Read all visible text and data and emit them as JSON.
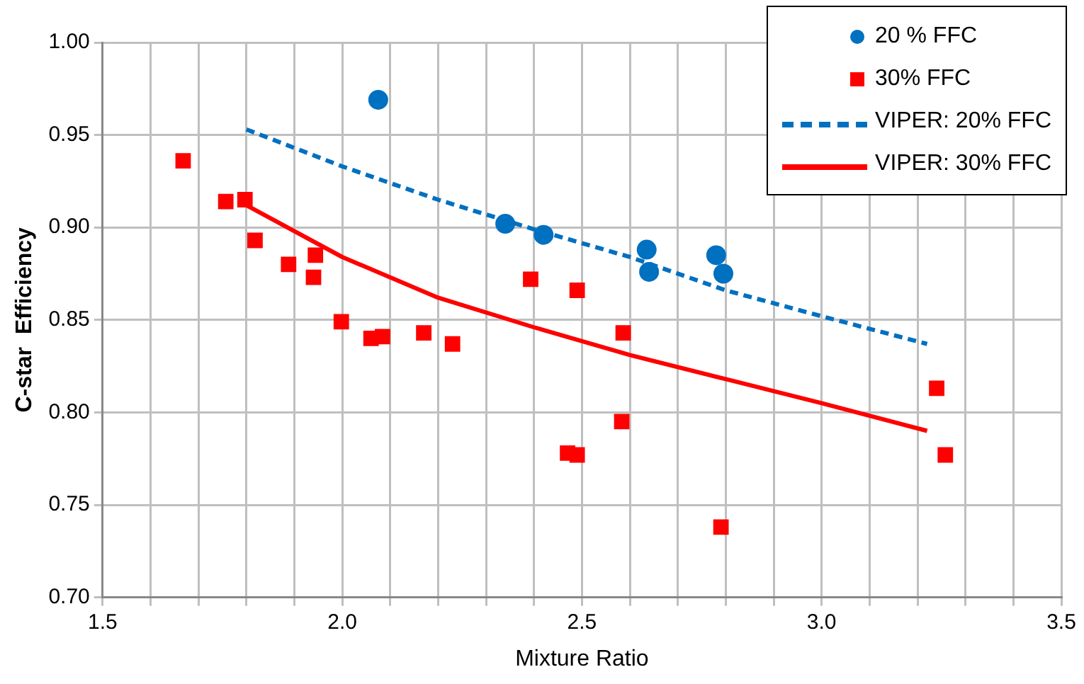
{
  "chart_data": {
    "type": "scatter",
    "xlabel": "Mixture Ratio",
    "ylabel": "C-star  Efficiency",
    "xlim": [
      1.5,
      3.5
    ],
    "ylim": [
      0.7,
      1.0
    ],
    "xticks": [
      1.5,
      {
        "value": 1.6,
        "label": null
      },
      {
        "value": 1.7,
        "label": null
      },
      {
        "value": 1.8,
        "label": null
      },
      {
        "value": 1.9,
        "label": null
      },
      {
        "value": 2,
        "label": "2.0"
      },
      {
        "value": 2.1,
        "label": null
      },
      {
        "value": 2.2,
        "label": null
      },
      {
        "value": 2.3,
        "label": null
      },
      {
        "value": 2.4,
        "label": null
      },
      2.5,
      {
        "value": 2.6,
        "label": null
      },
      {
        "value": 2.7,
        "label": null
      },
      {
        "value": 2.8,
        "label": null
      },
      {
        "value": 2.9,
        "label": null
      },
      {
        "value": 3,
        "label": "3.0"
      },
      {
        "value": 3.1,
        "label": null
      },
      {
        "value": 3.2,
        "label": null
      },
      {
        "value": 3.3,
        "label": null
      },
      {
        "value": 3.4,
        "label": null
      },
      3.5
    ],
    "yticks": [
      {
        "value": 0.7,
        "label": "0.70"
      },
      0.75,
      {
        "value": 0.8,
        "label": "0.80"
      },
      0.85,
      {
        "value": 0.9,
        "label": "0.90"
      },
      0.95,
      {
        "value": 1.0,
        "label": "1.00"
      }
    ],
    "grid": true,
    "legend": "top right",
    "series": [
      {
        "name": "20 % FFC",
        "type": "scatter",
        "marker": "circle",
        "color": "#0070c0",
        "x": [
          2.075,
          2.34,
          2.42,
          2.635,
          2.64,
          2.78,
          2.795
        ],
        "values": [
          0.969,
          0.902,
          0.896,
          0.888,
          0.876,
          0.885,
          0.875
        ]
      },
      {
        "name": "30% FFC",
        "type": "scatter",
        "marker": "square",
        "color": "#ff0000",
        "x": [
          1.668,
          1.757,
          1.797,
          1.818,
          1.888,
          1.944,
          1.94,
          1.998,
          2.06,
          2.084,
          2.17,
          2.23,
          2.393,
          2.49,
          2.586,
          2.583,
          2.47,
          2.49,
          2.79,
          3.24,
          3.258
        ],
        "values": [
          0.936,
          0.914,
          0.915,
          0.893,
          0.88,
          0.885,
          0.873,
          0.849,
          0.84,
          0.841,
          0.843,
          0.837,
          0.872,
          0.866,
          0.843,
          0.795,
          0.778,
          0.777,
          0.738,
          0.813,
          0.777
        ]
      },
      {
        "name": "VIPER: 20% FFC",
        "type": "line",
        "marker": "none",
        "line_style": "dashed",
        "color": "#0070c0",
        "x": [
          1.8,
          2.0,
          2.2,
          2.4,
          2.6,
          2.8,
          3.0,
          3.22
        ],
        "values": [
          0.953,
          0.933,
          0.915,
          0.899,
          0.884,
          0.866,
          0.852,
          0.837
        ]
      },
      {
        "name": "VIPER: 30% FFC",
        "type": "line",
        "marker": "none",
        "line_style": "solid",
        "color": "#ff0000",
        "x": [
          1.8,
          2.0,
          2.2,
          2.4,
          2.6,
          2.8,
          3.0,
          3.22
        ],
        "values": [
          0.912,
          0.884,
          0.862,
          0.846,
          0.831,
          0.818,
          0.805,
          0.79
        ]
      }
    ]
  }
}
